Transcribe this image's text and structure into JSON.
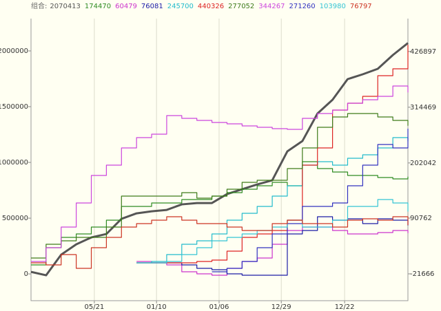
{
  "chart_data": {
    "type": "line",
    "x": [
      0,
      4,
      8,
      12,
      16,
      20,
      24,
      28,
      32,
      36,
      40,
      44,
      48,
      52,
      56,
      60,
      64,
      68,
      72,
      76,
      80,
      84,
      88,
      92,
      96,
      100
    ],
    "xlim": [
      0,
      100
    ],
    "xticks": [
      {
        "value": 16.8,
        "label": "05/21"
      },
      {
        "value": 33.3,
        "label": "01/10"
      },
      {
        "value": 49.9,
        "label": "01/06"
      },
      {
        "value": 66.4,
        "label": "12/29"
      },
      {
        "value": 83.2,
        "label": "12/22"
      }
    ],
    "ylim": [
      -240000,
      2290000
    ],
    "yticks": [
      0,
      500000,
      1000000,
      1500000,
      2000000
    ],
    "y2lim": [
      -75800,
      493300
    ],
    "y2ticks": [
      -21666,
      90762,
      202042,
      314469,
      426897
    ],
    "grid": "x",
    "series": [
      {
        "name": "组合:",
        "color": "#555555",
        "line_width": 3,
        "values": [
          18500,
          -12300,
          172800,
          265400,
          327200,
          358000,
          493800,
          543200,
          561700,
          574100,
          623500,
          635800,
          635800,
          716100,
          759300,
          802500,
          839500,
          1098800,
          1191400,
          1438300,
          1561800,
          1747000,
          1790200,
          1839600,
          1963000,
          2070413
        ]
      },
      {
        "color": "#2e8b22",
        "axis": "y2",
        "step": true,
        "values": [
          -3622,
          31078,
          51898,
          58838,
          72718,
          86598,
          114358,
          114358,
          121298,
          121298,
          128238,
          128238,
          135178,
          142118,
          149058,
          155998,
          162938,
          155998,
          204578,
          190698,
          183758,
          176818,
          176818,
          172654,
          169878,
          174470
        ]
      },
      {
        "color": "#cc33cc",
        "axis": "y2",
        "step": true,
        "values": [
          null,
          null,
          null,
          null,
          null,
          null,
          null,
          3318,
          542,
          -3622,
          -17502,
          -21666,
          -24442,
          -10562,
          3318,
          10258,
          38018,
          65778,
          72718,
          72718,
          65778,
          58838,
          58838,
          61614,
          65778,
          60479
        ]
      },
      {
        "color": "#1a1aa6",
        "axis": "y2",
        "step": true,
        "values": [
          null,
          null,
          null,
          null,
          null,
          null,
          null,
          542,
          542,
          542,
          -3622,
          -10562,
          -13338,
          -21666,
          -24442,
          -24442,
          -24442,
          58838,
          65778,
          93538,
          86598,
          89374,
          79658,
          89374,
          86598,
          76081
        ]
      },
      {
        "color": "#22bbcc",
        "axis": "y2",
        "step": true,
        "values": [
          null,
          null,
          null,
          null,
          null,
          null,
          null,
          542,
          3318,
          17198,
          38018,
          44958,
          58838,
          86598,
          100478,
          114358,
          135178,
          155998,
          197638,
          204578,
          197638,
          211518,
          218458,
          232338,
          253158,
          245700
        ]
      },
      {
        "color": "#dd2222",
        "axis": "y2",
        "step": true,
        "values": [
          null,
          null,
          null,
          null,
          null,
          null,
          null,
          542,
          542,
          542,
          542,
          3318,
          6094,
          24138,
          51898,
          58838,
          65778,
          86598,
          197638,
          232338,
          308678,
          322558,
          336438,
          378078,
          391958,
          440326
        ]
      },
      {
        "color": "#3d7a1a",
        "axis": "y2",
        "step": true,
        "values": [
          10258,
          38018,
          44958,
          51898,
          51898,
          72718,
          135178,
          135178,
          135178,
          135178,
          142118,
          131014,
          135178,
          149058,
          162938,
          167102,
          167102,
          190698,
          232338,
          273978,
          294798,
          301738,
          301738,
          294798,
          287858,
          277052
        ]
      },
      {
        "color": "#cc44dd",
        "axis": "y2",
        "step": true,
        "values": [
          3318,
          31078,
          72718,
          121298,
          176818,
          197638,
          232338,
          253158,
          260098,
          297574,
          292022,
          287858,
          283694,
          280918,
          276754,
          273978,
          271202,
          269814,
          292022,
          301738,
          308678,
          322558,
          329498,
          336438,
          357258,
          344267
        ]
      },
      {
        "color": "#3030c0",
        "axis": "y2",
        "step": true,
        "values": [
          null,
          null,
          null,
          null,
          null,
          null,
          null,
          null,
          null,
          null,
          null,
          null,
          -17502,
          -10562,
          3318,
          31078,
          58838,
          79658,
          114358,
          114358,
          121298,
          155998,
          197638,
          239278,
          232338,
          271260
        ]
      },
      {
        "color": "#33c4d4",
        "axis": "y2",
        "step": true,
        "values": [
          null,
          null,
          null,
          null,
          null,
          null,
          null,
          542,
          542,
          3318,
          17198,
          31078,
          44958,
          51898,
          58838,
          65778,
          72718,
          86598,
          72718,
          72718,
          86598,
          114358,
          114358,
          128238,
          121298,
          103980
        ]
      },
      {
        "color": "#cc3322",
        "axis": "y2",
        "step": true,
        "values": [
          542,
          -3622,
          17198,
          -10562,
          31078,
          51898,
          72718,
          79658,
          86598,
          93538,
          86598,
          79658,
          79658,
          72718,
          65778,
          65778,
          79658,
          86598,
          79658,
          79658,
          72718,
          86598,
          89374,
          86598,
          93538,
          76797
        ]
      }
    ]
  }
}
